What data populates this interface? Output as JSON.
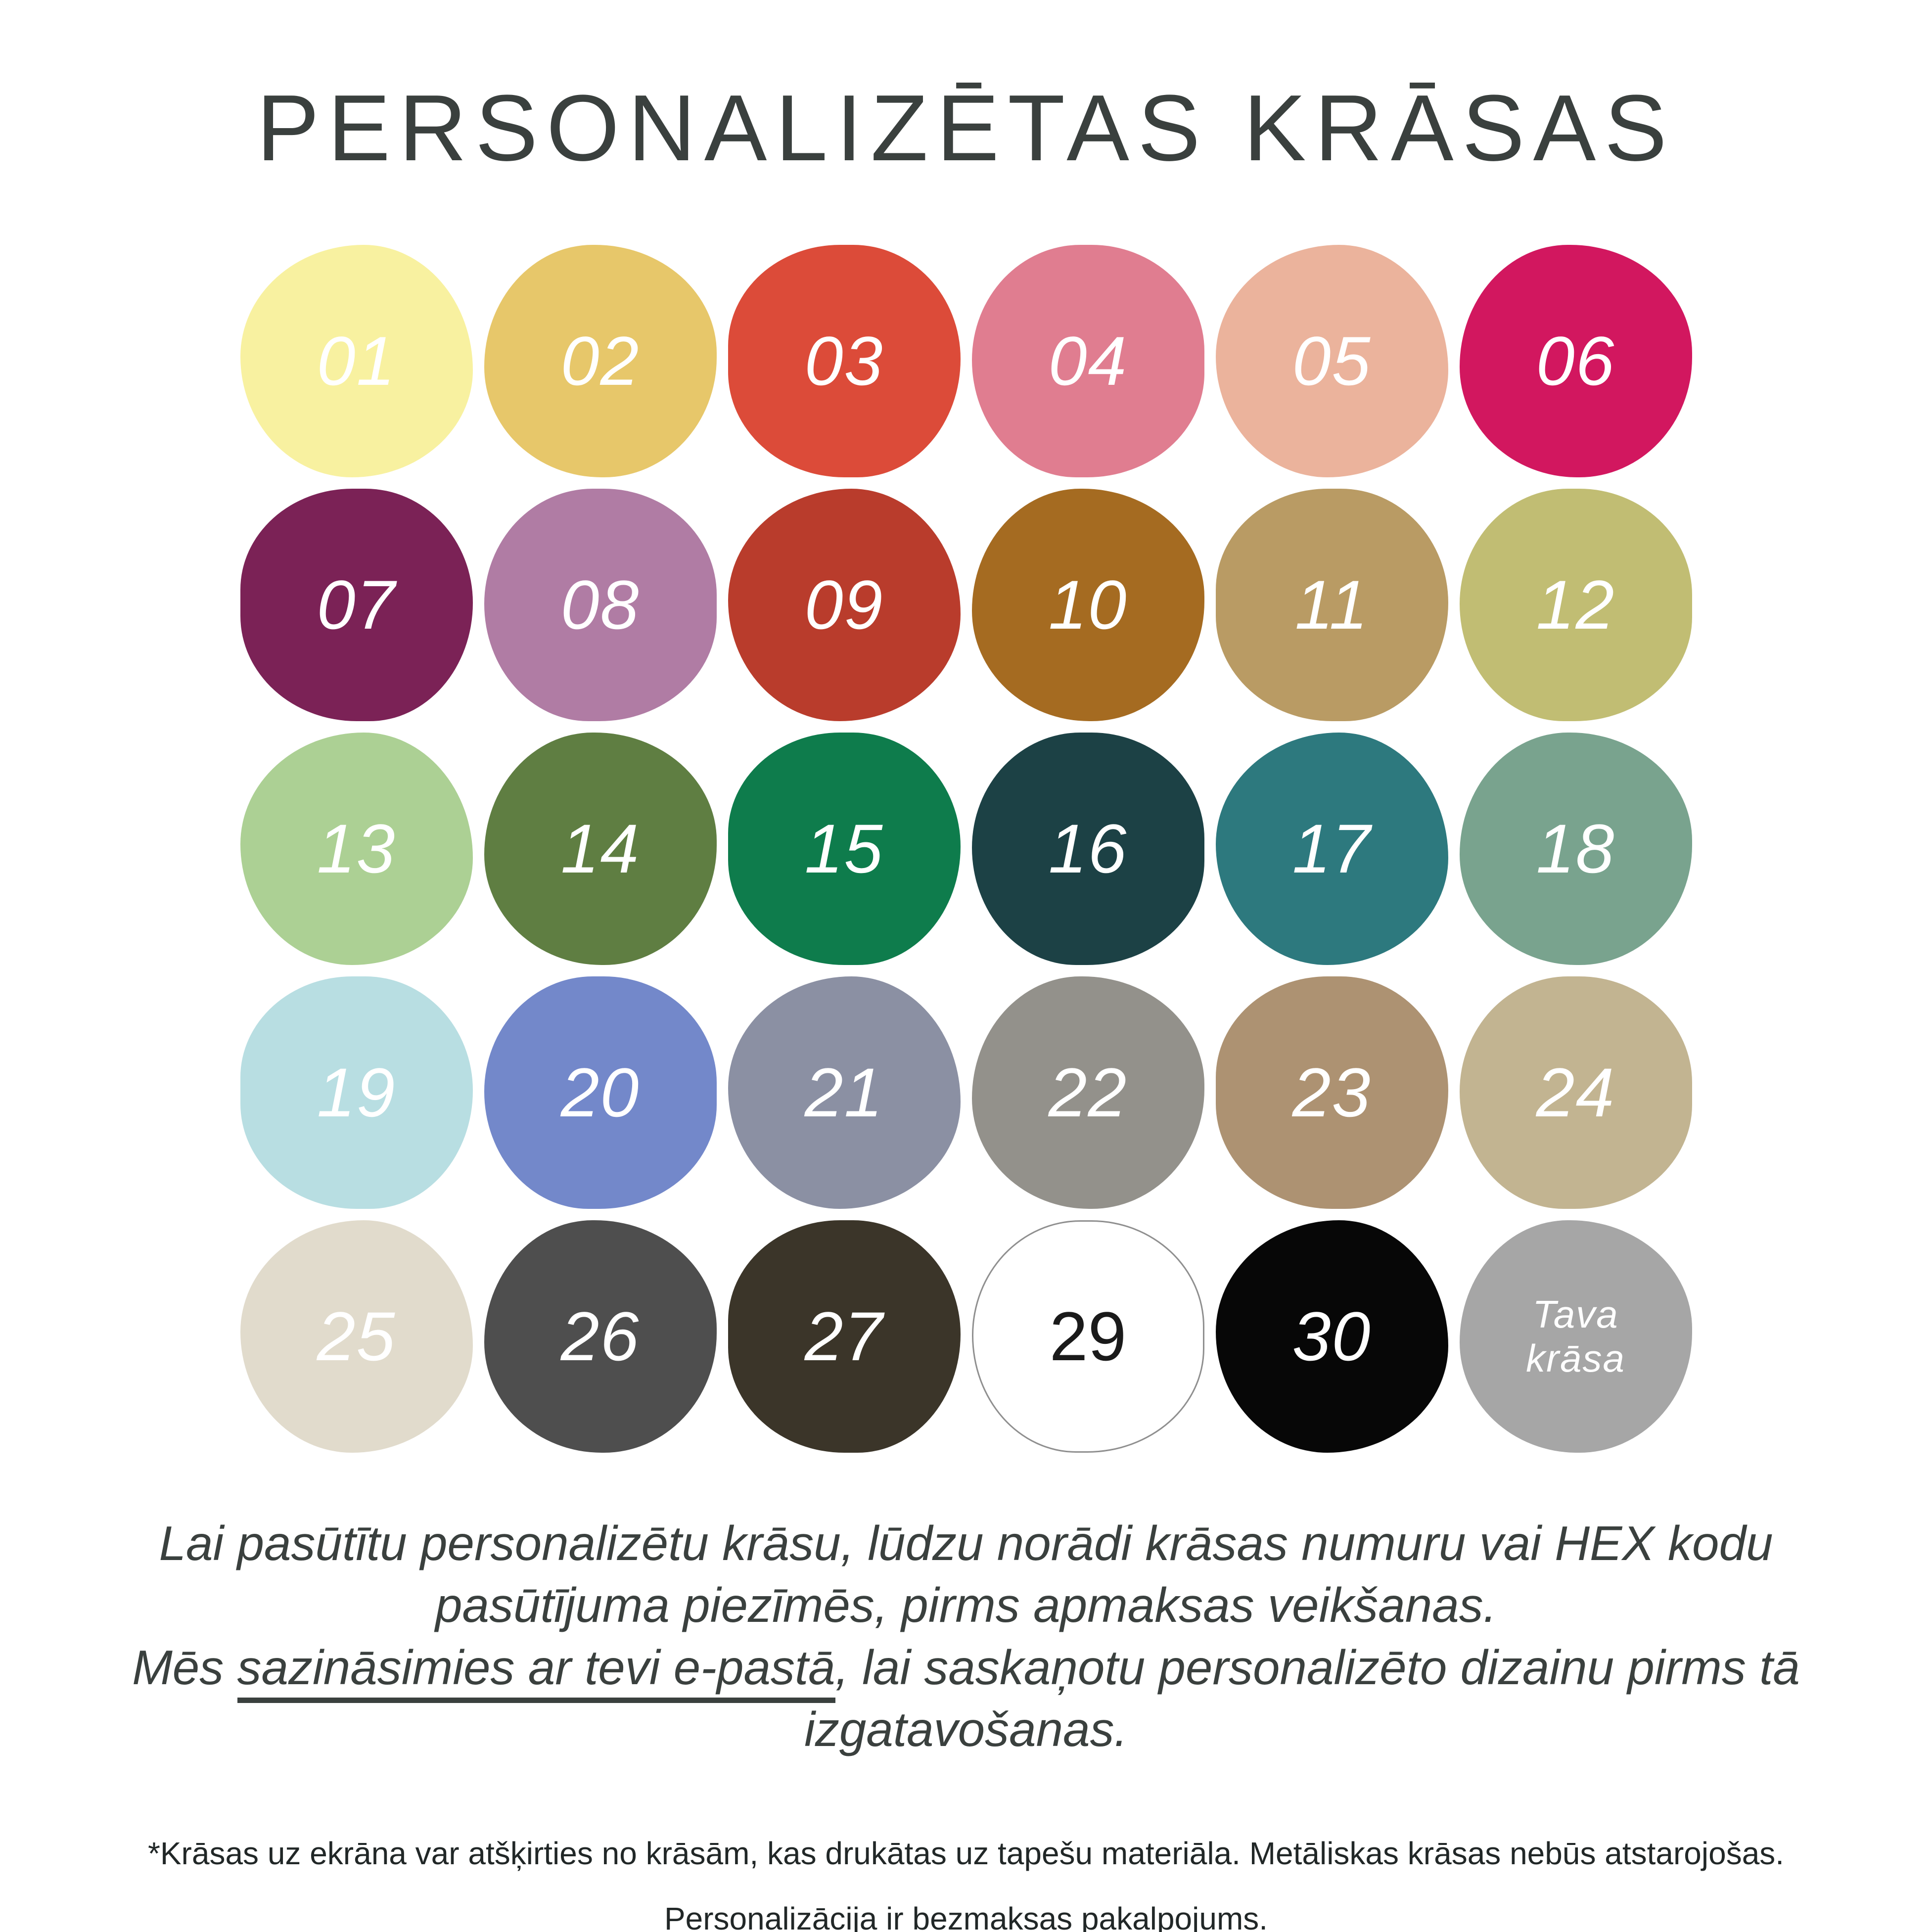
{
  "title": "PERSONALIZĒTAS KRĀSAS",
  "swatch_text_color_default": "#FFFFFF",
  "swatches": [
    {
      "label": "01",
      "color": "#F8F1A0"
    },
    {
      "label": "02",
      "color": "#E7C76A"
    },
    {
      "label": "03",
      "color": "#DC4B39"
    },
    {
      "label": "04",
      "color": "#E07D90"
    },
    {
      "label": "05",
      "color": "#EBB39C"
    },
    {
      "label": "06",
      "color": "#D2175F"
    },
    {
      "label": "07",
      "color": "#7B2256"
    },
    {
      "label": "08",
      "color": "#B07CA4"
    },
    {
      "label": "09",
      "color": "#B93C2C"
    },
    {
      "label": "10",
      "color": "#A56B21"
    },
    {
      "label": "11",
      "color": "#B99B64"
    },
    {
      "label": "12",
      "color": "#C1BD73"
    },
    {
      "label": "13",
      "color": "#ACD094"
    },
    {
      "label": "14",
      "color": "#5F7E42"
    },
    {
      "label": "15",
      "color": "#0E7C4C"
    },
    {
      "label": "16",
      "color": "#1C4145"
    },
    {
      "label": "17",
      "color": "#2D797E"
    },
    {
      "label": "18",
      "color": "#79A38E"
    },
    {
      "label": "19",
      "color": "#B8DEE2"
    },
    {
      "label": "20",
      "color": "#7388CA"
    },
    {
      "label": "21",
      "color": "#8B90A3"
    },
    {
      "label": "22",
      "color": "#93918B"
    },
    {
      "label": "23",
      "color": "#AD9272"
    },
    {
      "label": "24",
      "color": "#C2B491"
    },
    {
      "label": "25",
      "color": "#E1DBCC"
    },
    {
      "label": "26",
      "color": "#4E4E4E"
    },
    {
      "label": "27",
      "color": "#3B3529"
    },
    {
      "label": "29",
      "color": "#FFFFFF",
      "text_color": "#1A1A1A",
      "outlined": true,
      "italic": false
    },
    {
      "label": "30",
      "color": "#070707"
    },
    {
      "label": "Tava krāsa",
      "color": "#A6A6A6",
      "multiline": true
    }
  ],
  "note": {
    "line1": "Lai pasūtītu personalizētu krāsu, lūdzu norādi krāsas numuru vai HEX kodu pasūtījuma piezīmēs, pirms apmaksas veikšanas.",
    "line2_prefix": "Mēs ",
    "line2_underlined": "sazināsimies ar tevi e-pastā",
    "line2_suffix": ", lai saskaņotu personalizēto dizainu pirms tā izgatavošanas."
  },
  "footer": {
    "line1": "*Krāsas uz ekrāna var atšķirties no krāsām, kas drukātas uz tapešu materiāla. Metāliskas krāsas nebūs atstarojošas.",
    "line2": "Personalizācija ir bezmaksas pakalpojums."
  }
}
